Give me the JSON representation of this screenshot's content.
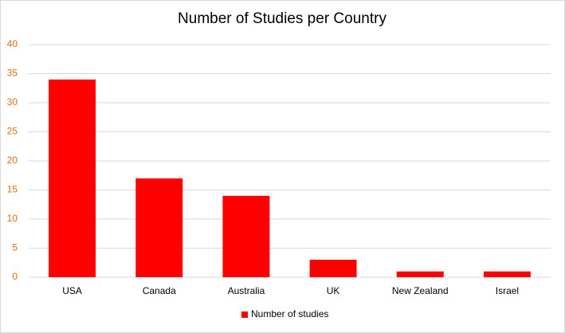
{
  "chart_data": {
    "type": "bar",
    "title": "Number of Studies per Country",
    "categories": [
      "USA",
      "Canada",
      "Australia",
      "UK",
      "New Zealand",
      "Israel"
    ],
    "series": [
      {
        "name": "Number of studies",
        "color": "#ff0000",
        "values": [
          34,
          17,
          14,
          3,
          1,
          1
        ]
      }
    ],
    "ylim": [
      0,
      40
    ],
    "yticks": [
      0,
      5,
      10,
      15,
      20,
      25,
      30,
      35,
      40
    ],
    "grid": true,
    "legend": "bottom"
  }
}
